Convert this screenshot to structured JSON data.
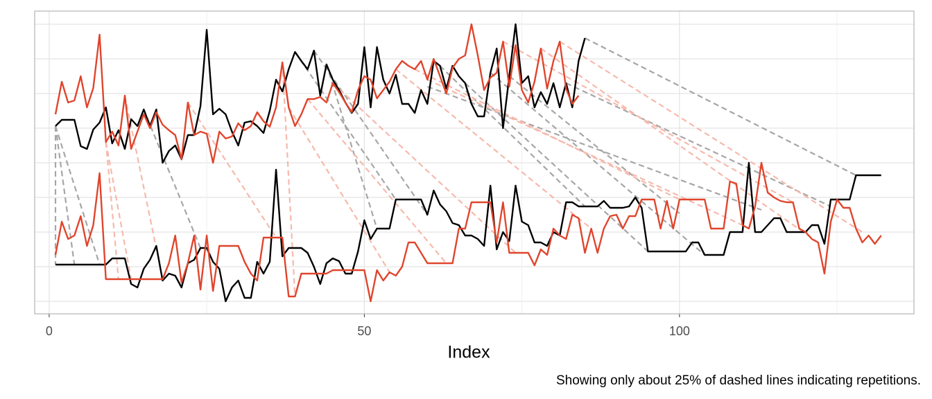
{
  "chart_data": {
    "type": "line",
    "xlabel": "Index",
    "caption": "Showing only about 25% of dashed lines indicating repetitions.",
    "x": [
      1,
      2,
      3,
      4,
      5,
      6,
      7,
      8,
      9,
      10,
      11,
      12,
      13,
      14,
      15,
      16,
      17,
      18,
      19,
      20,
      21,
      22,
      23,
      24,
      25,
      26,
      27,
      28,
      29,
      30,
      31,
      32,
      33,
      34,
      35,
      36,
      37,
      38,
      39,
      40,
      41,
      42,
      43,
      44,
      45,
      46,
      47,
      48,
      49,
      50,
      51,
      52,
      53,
      54,
      55,
      56,
      57,
      58,
      59,
      60,
      61,
      62,
      63,
      64,
      65,
      66,
      67,
      68,
      69,
      70,
      71,
      72,
      73,
      74,
      75,
      76,
      77,
      78,
      79,
      80,
      81,
      82,
      83,
      84,
      85,
      86,
      87,
      88,
      89,
      90,
      91,
      92,
      93,
      94,
      95,
      96,
      97,
      98,
      99,
      100,
      101,
      102,
      103,
      104,
      105,
      106,
      107,
      108,
      109,
      110,
      111,
      112,
      113,
      114,
      115,
      116,
      117,
      118,
      119,
      120,
      121,
      122,
      123,
      124,
      125,
      126,
      127,
      128,
      129,
      130,
      131,
      132
    ],
    "xlim": [
      -2.3,
      137.2
    ],
    "xticks": [
      0,
      50,
      100
    ],
    "xminor": [
      25,
      75,
      125
    ],
    "ylim": [
      -1.8,
      41.9
    ],
    "ygrid": [
      0,
      5,
      10,
      15,
      20,
      25,
      30,
      35,
      40
    ],
    "grid": true,
    "series": [
      {
        "color": "#000000",
        "values": [
          5.3,
          5.3,
          5.3,
          5.3,
          5.3,
          5.3,
          5.3,
          5.3,
          5.3,
          6.2,
          6.2,
          6.2,
          2.5,
          2,
          4.7,
          6,
          8,
          3,
          4,
          3.7,
          2,
          5.5,
          6,
          7.7,
          7.7,
          5.7,
          4.7,
          0,
          2,
          3,
          0.5,
          0.5,
          5.7,
          4,
          5.7,
          19,
          6.5,
          7.7,
          7.7,
          7.7,
          7,
          5,
          2.5,
          5.5,
          6.2,
          5.8,
          4,
          4,
          7.2,
          11.7,
          9,
          10.5,
          10.5,
          10.5,
          14.7,
          14.7,
          14.7,
          14.7,
          14.7,
          12.5,
          16,
          14,
          13,
          11.3,
          11,
          9.5,
          9.5,
          9,
          8,
          16.7,
          7.5,
          10,
          8.7,
          16.7,
          11.5,
          11,
          8.5,
          8.5,
          8,
          10,
          9.5,
          14.3,
          14.3,
          13.7,
          13.7,
          13.7,
          13.7,
          14.5,
          13.5,
          13.5,
          13.5,
          13.7,
          15,
          13.5,
          7.2,
          7.2,
          7.2,
          7.2,
          7.2,
          7.2,
          7.2,
          8.5,
          8.5,
          6.7,
          6.7,
          6.7,
          6.7,
          10,
          10,
          10,
          20,
          10,
          10,
          11,
          12,
          12,
          10,
          10,
          10,
          10,
          11,
          11,
          8.3,
          14.7,
          14.7,
          14.7,
          14.7,
          18.2,
          18.2,
          18.2,
          18.2,
          18.2
        ]
      },
      {
        "color": "#e0452c",
        "values": [
          6.7,
          11.5,
          9,
          9.5,
          12.3,
          8,
          11,
          18.5,
          3.2,
          3.2,
          3.2,
          3.2,
          3.2,
          3.2,
          3.2,
          3.2,
          3.2,
          3.2,
          5.5,
          9.5,
          2.7,
          5.5,
          9.5,
          1.7,
          9.5,
          1.5,
          8,
          8,
          8,
          8,
          5.7,
          4,
          3,
          9.2,
          9.2,
          9.2,
          9.2,
          0.7,
          0.7,
          4,
          4,
          4,
          4,
          4,
          4.5,
          4.5,
          4.5,
          4.5,
          4.5,
          4.5,
          0,
          4.5,
          3,
          4.2,
          3.7,
          5,
          8.5,
          8.5,
          7,
          5.5,
          5.5,
          5.5,
          5.5,
          5.5,
          10.5,
          10.5,
          14.3,
          14.3,
          14.3,
          14.3,
          8.5,
          14.3,
          7,
          7,
          7,
          7,
          5.2,
          7.5,
          6.7,
          10.5,
          9.5,
          9,
          12.5,
          12,
          7,
          10.5,
          7,
          10.5,
          12.3,
          12.5,
          10.5,
          12.3,
          12.3,
          14.7,
          14.7,
          14.7,
          10.5,
          14.5,
          10.5,
          14.7,
          14.7,
          14.7,
          14.7,
          14.7,
          10.5,
          10.5,
          10.5,
          17.3,
          17,
          11,
          10.5,
          13.7,
          20,
          15.7,
          15,
          14.5,
          14.3,
          14.3,
          10.5,
          10,
          9,
          8.5,
          4,
          11.5,
          14.7,
          13.5,
          13.5,
          10.5,
          8.5,
          9.5,
          8.3,
          9.5
        ]
      },
      {
        "color": "#000000",
        "values": [
          25.3,
          26.2,
          26.2,
          26.2,
          22.4,
          22,
          24.8,
          25.8,
          28,
          22.8,
          24.7,
          22,
          26.3,
          25.3,
          27.7,
          25.3,
          27.7,
          20,
          21.7,
          22.5,
          20.5,
          24,
          24,
          28.2,
          39.2,
          27,
          27.8,
          27,
          24.5,
          22.5,
          25.8,
          26,
          25.3,
          24.3,
          27.5,
          32,
          30.3,
          33.5,
          36,
          34.7,
          33.5,
          36.2,
          29.7,
          34.2,
          32,
          30.5,
          28.7,
          27.2,
          28.5,
          36.7,
          28,
          36.7,
          32,
          30,
          32.7,
          28.5,
          28.5,
          27.2,
          30.5,
          28.5,
          34.7,
          34,
          30.7,
          34,
          32.5,
          31.5,
          28.5,
          26.7,
          26.7,
          33,
          36.5,
          25,
          32.5,
          40,
          31.5,
          32.5,
          28,
          30.2,
          28.5,
          31.5,
          28,
          31.5,
          28,
          34.7,
          38,
          null,
          null,
          null,
          null,
          null,
          null,
          null,
          null,
          null,
          null,
          null,
          null,
          null,
          null,
          null,
          null,
          null,
          null,
          null,
          null,
          null,
          null,
          null,
          null,
          null,
          null,
          null,
          null,
          null,
          null,
          null,
          null,
          null,
          null,
          null,
          null,
          null,
          null,
          null,
          null,
          null,
          null,
          null,
          null,
          null,
          null,
          null
        ]
      },
      {
        "color": "#e0452c",
        "values": [
          27,
          31.7,
          28.7,
          29,
          32.5,
          28,
          30.8,
          38.5,
          23,
          24.5,
          22.5,
          29.7,
          22,
          24.5,
          27,
          25,
          27.3,
          25.5,
          24.7,
          24,
          20.5,
          28.7,
          24,
          24.5,
          24.2,
          20,
          24.5,
          23.5,
          23.8,
          25.7,
          24.7,
          25.3,
          27.3,
          26,
          25.2,
          28,
          34.5,
          28,
          25.3,
          27,
          29.2,
          29.2,
          29.5,
          28.7,
          31.5,
          30.2,
          28.7,
          27.3,
          30.5,
          32.5,
          32,
          29.3,
          30.5,
          31.7,
          33.5,
          34.7,
          34,
          33.5,
          34.7,
          32,
          35,
          32.5,
          30,
          33.7,
          35,
          35.5,
          40,
          35.5,
          30.5,
          32.3,
          33,
          37.5,
          31,
          37,
          30.5,
          28.7,
          31.7,
          36.5,
          30.7,
          34.7,
          37.5,
          30.7,
          28.5,
          29.7,
          null,
          null,
          null,
          null,
          null,
          null,
          null,
          null,
          null,
          null,
          null,
          null,
          null,
          null,
          null,
          null,
          null,
          null,
          null,
          null,
          null,
          null,
          null,
          null,
          null,
          null,
          null,
          null,
          null,
          null,
          null,
          null,
          null,
          null,
          null,
          null,
          null,
          null,
          null,
          null,
          null,
          null,
          null,
          null,
          null,
          null,
          null,
          null
        ]
      }
    ],
    "links": [
      {
        "color": "#a6a6a6",
        "from": [
          1,
          25.3
        ],
        "to": [
          1,
          5.3
        ]
      },
      {
        "color": "#a6a6a6",
        "from": [
          1,
          25.3
        ],
        "to": [
          4,
          5.3
        ]
      },
      {
        "color": "#a6a6a6",
        "from": [
          1,
          25.3
        ],
        "to": [
          8,
          5.3
        ]
      },
      {
        "color": "#a6a6a6",
        "from": [
          15,
          27.7
        ],
        "to": [
          24,
          7.7
        ]
      },
      {
        "color": "#a6a6a6",
        "from": [
          39,
          36
        ],
        "to": [
          55,
          14.7
        ]
      },
      {
        "color": "#a6a6a6",
        "from": [
          42,
          36.2
        ],
        "to": [
          60,
          12.5
        ]
      },
      {
        "color": "#a6a6a6",
        "from": [
          44,
          34.2
        ],
        "to": [
          52,
          10.5
        ]
      },
      {
        "color": "#a6a6a6",
        "from": [
          62,
          34
        ],
        "to": [
          85,
          13.7
        ]
      },
      {
        "color": "#a6a6a6",
        "from": [
          66,
          31.5
        ],
        "to": [
          95,
          7.2
        ]
      },
      {
        "color": "#a6a6a6",
        "from": [
          70,
          33
        ],
        "to": [
          104,
          6.7
        ]
      },
      {
        "color": "#a6a6a6",
        "from": [
          73,
          32.5
        ],
        "to": [
          100,
          12.7
        ]
      },
      {
        "color": "#a6a6a6",
        "from": [
          60,
          31
        ],
        "to": [
          113,
          13.2
        ]
      },
      {
        "color": "#a6a6a6",
        "from": [
          82,
          31.5
        ],
        "to": [
          124,
          13.7
        ]
      },
      {
        "color": "#a6a6a6",
        "from": [
          85,
          38
        ],
        "to": [
          128,
          18.2
        ]
      },
      {
        "color": "#f6b9ac",
        "from": [
          9,
          23
        ],
        "to": [
          11,
          3.2
        ]
      },
      {
        "color": "#f6b9ac",
        "from": [
          9,
          23
        ],
        "to": [
          13,
          3.2
        ]
      },
      {
        "color": "#f6b9ac",
        "from": [
          12,
          29.7
        ],
        "to": [
          18,
          3.2
        ]
      },
      {
        "color": "#f6b9ac",
        "from": [
          22,
          28.7
        ],
        "to": [
          36,
          9.2
        ]
      },
      {
        "color": "#f6b9ac",
        "from": [
          37,
          34.5
        ],
        "to": [
          39,
          0.7
        ]
      },
      {
        "color": "#f6b9ac",
        "from": [
          38,
          28
        ],
        "to": [
          54,
          4.2
        ]
      },
      {
        "color": "#f6b9ac",
        "from": [
          41,
          29.2
        ],
        "to": [
          63,
          5.5
        ]
      },
      {
        "color": "#f6b9ac",
        "from": [
          45,
          31.5
        ],
        "to": [
          74,
          7
        ]
      },
      {
        "color": "#f6b9ac",
        "from": [
          55,
          33.5
        ],
        "to": [
          86,
          10.5
        ]
      },
      {
        "color": "#f6b9ac",
        "from": [
          58,
          33.5
        ],
        "to": [
          100,
          14.7
        ]
      },
      {
        "color": "#f6b9ac",
        "from": [
          60,
          32
        ],
        "to": [
          110,
          11
        ]
      },
      {
        "color": "#f6b9ac",
        "from": [
          72,
          37.5
        ],
        "to": [
          118,
          14.3
        ]
      },
      {
        "color": "#f6b9ac",
        "from": [
          78,
          36.5
        ],
        "to": [
          122,
          8.5
        ]
      },
      {
        "color": "#f6b9ac",
        "from": [
          81,
          37.5
        ],
        "to": [
          129,
          10
        ]
      }
    ]
  }
}
